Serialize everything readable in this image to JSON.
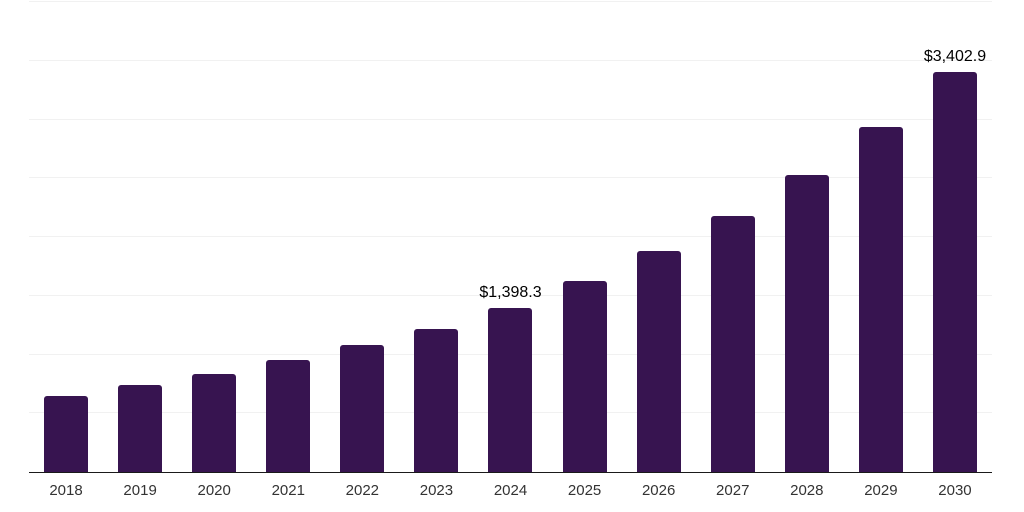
{
  "chart_data": {
    "type": "bar",
    "categories": [
      "2018",
      "2019",
      "2020",
      "2021",
      "2022",
      "2023",
      "2024",
      "2025",
      "2026",
      "2027",
      "2028",
      "2029",
      "2030"
    ],
    "values": [
      650,
      740,
      833,
      956,
      1081,
      1220,
      1398.3,
      1625,
      1878,
      2183,
      2532,
      2940,
      3402.9
    ],
    "data_labels": [
      {
        "category": "2024",
        "text": "$1,398.3"
      },
      {
        "category": "2030",
        "text": "$3,402.9"
      }
    ],
    "ylim": [
      0,
      4000
    ],
    "gridline_interval": 500,
    "grid": true,
    "legend": "none",
    "colors": {
      "bar": "#371450",
      "gridline": "#F1F1F1",
      "axis_line": "#1A1A1A",
      "data_label": "#000000",
      "tick_label": "#333333",
      "background": "#FFFFFF"
    }
  }
}
